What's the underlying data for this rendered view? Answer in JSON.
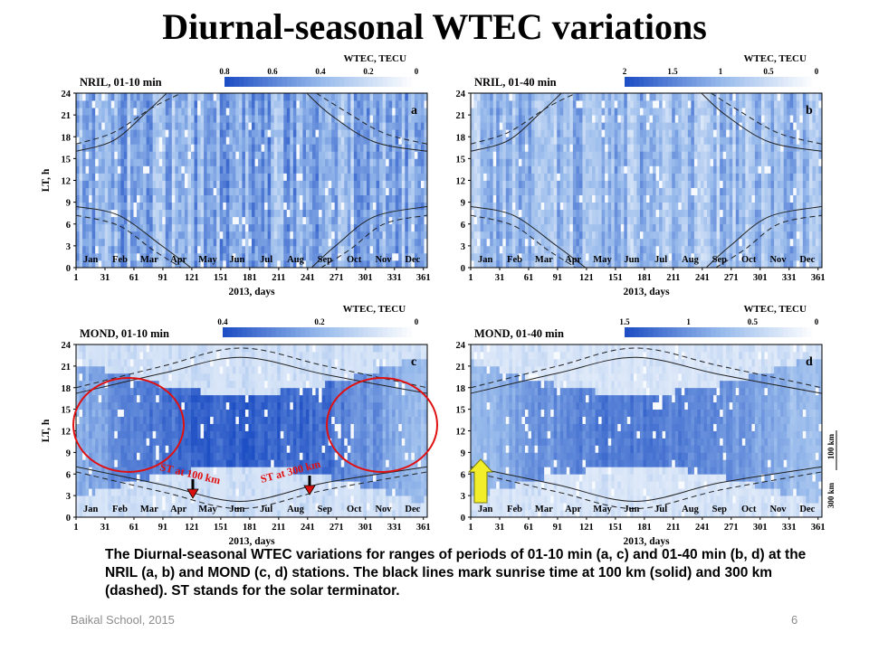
{
  "slide": {
    "title": "Diurnal-seasonal WTEC variations",
    "caption": "The Diurnal-seasonal WTEC variations for ranges of periods of 01-10 min (a, c) and 01-40 min (b, d) at the NRIL (a, b) and MOND (c, d) stations. The black lines mark sunrise time at 100 km (solid) and 300 km (dashed). ST  stands for the solar terminator.",
    "footer_left": "Baikal School, 2015",
    "page_number": "6"
  },
  "colors": {
    "heatmap_low": "#ffffff",
    "heatmap_high": "#1f4fc4",
    "circle": "#e01010",
    "arrow_red": "#d81010",
    "arrow_yellow": "#f2ee2a",
    "annotation_text": "#e01010"
  },
  "chart_data": [
    {
      "type": "heatmap",
      "panel_letter": "a",
      "station_label": "NRIL,   01-10 min",
      "colorbar_title": "WTEC, TECU",
      "colorbar_ticks": [
        "0.8",
        "0.6",
        "0.4",
        "0.2",
        "0"
      ],
      "ylabel": "LT, h",
      "xlabel": "2013, days",
      "x_ticks": [
        "1",
        "31",
        "61",
        "91",
        "121",
        "151",
        "181",
        "211",
        "241",
        "271",
        "301",
        "331",
        "361"
      ],
      "y_ticks": [
        "0",
        "3",
        "6",
        "9",
        "12",
        "15",
        "18",
        "21",
        "24"
      ],
      "months": [
        "Jan",
        "Feb",
        "Mar",
        "Apr",
        "May",
        "Jun",
        "Jul",
        "Aug",
        "Sep",
        "Oct",
        "Nov",
        "Dec"
      ],
      "xlim": [
        1,
        365
      ],
      "ylim": [
        0,
        24
      ],
      "terminator_100km": [
        {
          "x": [
            1,
            45,
            90,
            120
          ],
          "y": [
            8.4,
            7.2,
            3.0,
            0
          ]
        },
        {
          "x": [
            1,
            40,
            75,
            95
          ],
          "y": [
            16.0,
            17.5,
            21.5,
            24
          ]
        },
        {
          "x": [
            245,
            270,
            310,
            365
          ],
          "y": [
            0,
            3.0,
            7.0,
            8.4
          ]
        },
        {
          "x": [
            240,
            265,
            310,
            365
          ],
          "y": [
            24,
            21.0,
            17.3,
            16.0
          ]
        }
      ],
      "terminator_300km": [
        {
          "x": [
            1,
            45,
            80,
            110
          ],
          "y": [
            7.2,
            5.8,
            2.5,
            0
          ]
        },
        {
          "x": [
            1,
            40,
            80,
            110
          ],
          "y": [
            17.0,
            18.6,
            22.0,
            24
          ]
        },
        {
          "x": [
            255,
            285,
            320,
            365
          ],
          "y": [
            0,
            2.5,
            6.0,
            7.2
          ]
        },
        {
          "x": [
            250,
            280,
            320,
            365
          ],
          "y": [
            24,
            21.5,
            18.5,
            17.0
          ]
        }
      ]
    },
    {
      "type": "heatmap",
      "panel_letter": "b",
      "station_label": "NRIL,   01-40 min",
      "colorbar_title": "WTEC, TECU",
      "colorbar_ticks": [
        "2",
        "1.5",
        "1",
        "0.5",
        "0"
      ],
      "ylabel": "",
      "xlabel": "2013, days",
      "x_ticks": [
        "1",
        "31",
        "61",
        "91",
        "121",
        "151",
        "181",
        "211",
        "241",
        "271",
        "301",
        "331",
        "361"
      ],
      "y_ticks": [
        "0",
        "3",
        "6",
        "9",
        "12",
        "15",
        "18",
        "21",
        "24"
      ],
      "months": [
        "Jan",
        "Feb",
        "Mar",
        "Apr",
        "May",
        "Jun",
        "Jul",
        "Aug",
        "Sep",
        "Oct",
        "Nov",
        "Dec"
      ],
      "xlim": [
        1,
        365
      ],
      "ylim": [
        0,
        24
      ],
      "terminator_100km": [
        {
          "x": [
            1,
            45,
            90,
            120
          ],
          "y": [
            8.4,
            7.2,
            3.0,
            0
          ]
        },
        {
          "x": [
            1,
            40,
            75,
            95
          ],
          "y": [
            16.0,
            17.5,
            21.5,
            24
          ]
        },
        {
          "x": [
            245,
            270,
            310,
            365
          ],
          "y": [
            0,
            3.0,
            7.0,
            8.4
          ]
        },
        {
          "x": [
            240,
            265,
            310,
            365
          ],
          "y": [
            24,
            21.0,
            17.3,
            16.0
          ]
        }
      ],
      "terminator_300km": [
        {
          "x": [
            1,
            45,
            80,
            110
          ],
          "y": [
            7.2,
            5.8,
            2.5,
            0
          ]
        },
        {
          "x": [
            1,
            40,
            80,
            110
          ],
          "y": [
            17.0,
            18.6,
            22.0,
            24
          ]
        },
        {
          "x": [
            255,
            285,
            320,
            365
          ],
          "y": [
            0,
            2.5,
            6.0,
            7.2
          ]
        },
        {
          "x": [
            250,
            280,
            320,
            365
          ],
          "y": [
            24,
            21.5,
            18.5,
            17.0
          ]
        }
      ]
    },
    {
      "type": "heatmap",
      "panel_letter": "c",
      "station_label": "MOND,   01-10 min",
      "colorbar_title": "WTEC, TECU",
      "colorbar_ticks": [
        "0.4",
        "0.2",
        "0"
      ],
      "ylabel": "LT, h",
      "xlabel": "2013, days",
      "x_ticks": [
        "1",
        "31",
        "61",
        "91",
        "121",
        "151",
        "181",
        "211",
        "241",
        "271",
        "301",
        "331",
        "361"
      ],
      "y_ticks": [
        "0",
        "3",
        "6",
        "9",
        "12",
        "15",
        "18",
        "21",
        "24"
      ],
      "months": [
        "Jan",
        "Feb",
        "Mar",
        "Apr",
        "May",
        "Jun",
        "Jul",
        "Aug",
        "Sep",
        "Oct",
        "Nov",
        "Dec"
      ],
      "xlim": [
        1,
        365
      ],
      "ylim": [
        0,
        24
      ],
      "terminator_100km": [
        {
          "x": [
            1,
            91,
            172,
            260,
            365
          ],
          "y": [
            7.0,
            4.5,
            2.2,
            4.8,
            7.0
          ]
        },
        {
          "x": [
            1,
            91,
            172,
            260,
            365
          ],
          "y": [
            17.2,
            20.0,
            22.2,
            19.8,
            17.2
          ]
        }
      ],
      "terminator_300km": [
        {
          "x": [
            1,
            91,
            172,
            260,
            365
          ],
          "y": [
            6.3,
            3.5,
            1.2,
            3.8,
            6.3
          ]
        },
        {
          "x": [
            1,
            91,
            172,
            260,
            365
          ],
          "y": [
            18.0,
            21.0,
            23.5,
            21.0,
            18.0
          ]
        }
      ],
      "annotations": [
        "ST at 100 km",
        "ST at 300 km"
      ]
    },
    {
      "type": "heatmap",
      "panel_letter": "d",
      "station_label": "MOND,   01-40 min",
      "colorbar_title": "WTEC, TECU",
      "colorbar_ticks": [
        "1.5",
        "1",
        "0.5",
        "0"
      ],
      "ylabel": "",
      "xlabel": "2013, days",
      "x_ticks": [
        "1",
        "31",
        "61",
        "91",
        "121",
        "151",
        "181",
        "211",
        "241",
        "271",
        "301",
        "331",
        "361"
      ],
      "y_ticks": [
        "0",
        "3",
        "6",
        "9",
        "12",
        "15",
        "18",
        "21",
        "24"
      ],
      "months": [
        "Jan",
        "Feb",
        "Mar",
        "Apr",
        "May",
        "Jun",
        "Jul",
        "Aug",
        "Sep",
        "Oct",
        "Nov",
        "Dec"
      ],
      "xlim": [
        1,
        365
      ],
      "ylim": [
        0,
        24
      ],
      "terminator_100km": [
        {
          "x": [
            1,
            91,
            172,
            260,
            365
          ],
          "y": [
            7.0,
            4.5,
            2.2,
            4.8,
            7.0
          ]
        },
        {
          "x": [
            1,
            91,
            172,
            260,
            365
          ],
          "y": [
            17.2,
            20.0,
            22.2,
            19.8,
            17.2
          ]
        }
      ],
      "terminator_300km": [
        {
          "x": [
            1,
            91,
            172,
            260,
            365
          ],
          "y": [
            6.3,
            3.5,
            1.2,
            3.8,
            6.3
          ]
        },
        {
          "x": [
            1,
            91,
            172,
            260,
            365
          ],
          "y": [
            18.0,
            21.0,
            23.5,
            21.0,
            18.0
          ]
        }
      ],
      "side_scale_labels": [
        "100 km",
        "300 km"
      ]
    }
  ]
}
